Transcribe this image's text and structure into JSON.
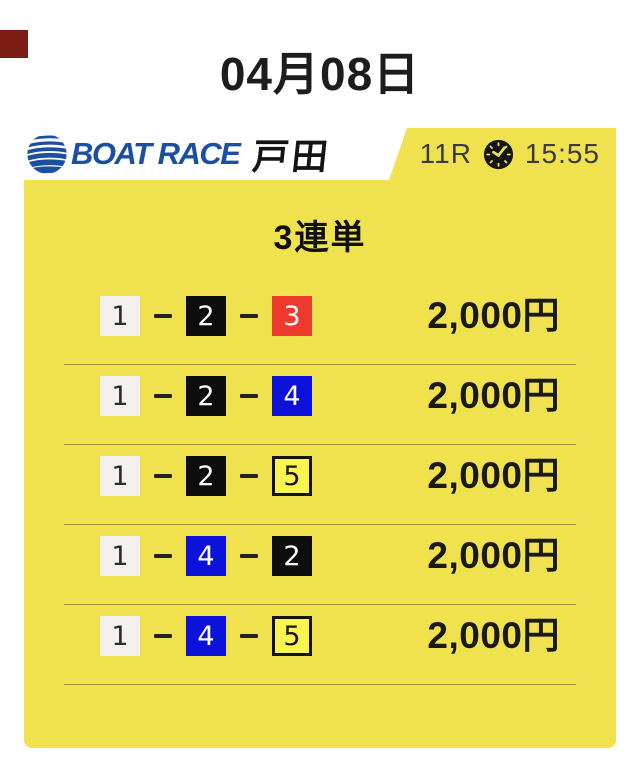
{
  "page": {
    "date_title": "04月08日",
    "background_color": "#FFFFFF",
    "corner_mark_color": "#7B1D15"
  },
  "header": {
    "logo": {
      "brand": "BOAT RACE",
      "venue": "戸田",
      "brand_color": "#1D4FA1"
    },
    "race": {
      "number": "11R",
      "time": "15:55"
    }
  },
  "card": {
    "bg_color": "#F0E14E",
    "bet_type": "3連単",
    "lane_colors": {
      "white": "#F2F1ED",
      "black": "#0D0D0D",
      "red": "#EE3A2E",
      "blue": "#0D12DA",
      "yellow": "#F9F451"
    },
    "rows": [
      {
        "combo": [
          {
            "num": "1",
            "color": "white"
          },
          {
            "num": "2",
            "color": "black"
          },
          {
            "num": "3",
            "color": "red"
          }
        ],
        "amount": "2,000円"
      },
      {
        "combo": [
          {
            "num": "1",
            "color": "white"
          },
          {
            "num": "2",
            "color": "black"
          },
          {
            "num": "4",
            "color": "blue"
          }
        ],
        "amount": "2,000円"
      },
      {
        "combo": [
          {
            "num": "1",
            "color": "white"
          },
          {
            "num": "2",
            "color": "black"
          },
          {
            "num": "5",
            "color": "yellow"
          }
        ],
        "amount": "2,000円"
      },
      {
        "combo": [
          {
            "num": "1",
            "color": "white"
          },
          {
            "num": "4",
            "color": "blue"
          },
          {
            "num": "2",
            "color": "black"
          }
        ],
        "amount": "2,000円"
      },
      {
        "combo": [
          {
            "num": "1",
            "color": "white"
          },
          {
            "num": "4",
            "color": "blue"
          },
          {
            "num": "5",
            "color": "yellow"
          }
        ],
        "amount": "2,000円"
      }
    ]
  }
}
